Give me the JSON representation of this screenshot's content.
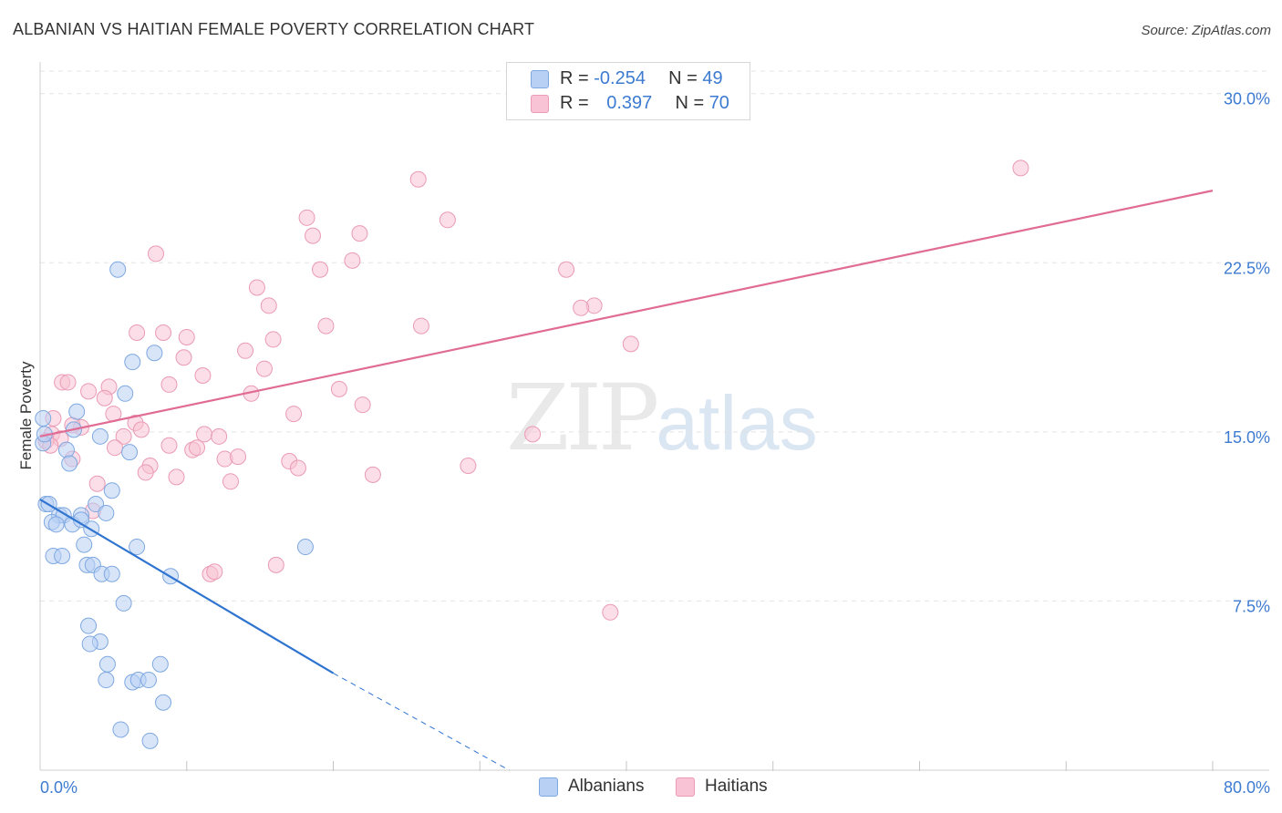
{
  "header": {
    "title": "ALBANIAN VS HAITIAN FEMALE POVERTY CORRELATION CHART",
    "source": "Source: ZipAtlas.com"
  },
  "watermark": {
    "part1": "ZIP",
    "part2": "atlas"
  },
  "legend": {
    "r_label": "R =",
    "n_label": "N =",
    "albanian": {
      "r": "-0.254",
      "n": "49"
    },
    "haitian": {
      "r": "0.397",
      "n": "70"
    }
  },
  "colors": {
    "albanian_fill": "#b8d0f4",
    "albanian_stroke": "#7ea8e0",
    "albanian_line": "#2f74d0",
    "haitian_fill": "#f8c3d4",
    "haitian_stroke": "#ea9ab4",
    "haitian_line": "#e06b94",
    "tick_label": "#3d7bd1",
    "grid": "#e4e4e4"
  },
  "chart_data": {
    "type": "scatter",
    "title": "ALBANIAN VS HAITIAN FEMALE POVERTY CORRELATION CHART",
    "xlabel": "",
    "ylabel": "Female Poverty",
    "xlim": [
      0,
      80
    ],
    "ylim": [
      0,
      31
    ],
    "x_tick_labels": [
      {
        "value": 0,
        "label": "0.0%"
      },
      {
        "value": 80,
        "label": "80.0%"
      }
    ],
    "y_ticks": [
      {
        "value": 7.5,
        "label": "7.5%"
      },
      {
        "value": 15.0,
        "label": "15.0%"
      },
      {
        "value": 22.5,
        "label": "22.5%"
      },
      {
        "value": 30.0,
        "label": "30.0%"
      }
    ],
    "series": [
      {
        "name": "Albanians",
        "r": -0.254,
        "n": 49,
        "trend": {
          "x_start": 0.0,
          "y_start": 12.0,
          "x_end": 20.0,
          "y_end": 4.3,
          "dashed_to_x": 32.0
        },
        "points": [
          [
            5.3,
            22.2
          ],
          [
            7.8,
            18.5
          ],
          [
            6.3,
            18.1
          ],
          [
            5.8,
            16.7
          ],
          [
            2.5,
            15.9
          ],
          [
            0.2,
            15.6
          ],
          [
            2.3,
            15.1
          ],
          [
            4.1,
            14.8
          ],
          [
            0.2,
            14.5
          ],
          [
            1.8,
            14.2
          ],
          [
            6.1,
            14.1
          ],
          [
            2.0,
            13.6
          ],
          [
            4.9,
            12.4
          ],
          [
            0.4,
            11.8
          ],
          [
            0.6,
            11.8
          ],
          [
            3.8,
            11.8
          ],
          [
            1.3,
            11.3
          ],
          [
            1.6,
            11.3
          ],
          [
            2.8,
            11.3
          ],
          [
            4.5,
            11.4
          ],
          [
            0.8,
            11.0
          ],
          [
            1.1,
            10.9
          ],
          [
            2.2,
            10.9
          ],
          [
            2.8,
            11.1
          ],
          [
            3.5,
            10.7
          ],
          [
            3.0,
            10.0
          ],
          [
            6.6,
            9.9
          ],
          [
            18.1,
            9.9
          ],
          [
            0.9,
            9.5
          ],
          [
            1.5,
            9.5
          ],
          [
            3.2,
            9.1
          ],
          [
            3.6,
            9.1
          ],
          [
            4.2,
            8.7
          ],
          [
            4.9,
            8.7
          ],
          [
            8.9,
            8.6
          ],
          [
            5.7,
            7.4
          ],
          [
            3.3,
            6.4
          ],
          [
            4.1,
            5.7
          ],
          [
            3.4,
            5.6
          ],
          [
            4.6,
            4.7
          ],
          [
            8.2,
            4.7
          ],
          [
            4.5,
            4.0
          ],
          [
            6.3,
            3.9
          ],
          [
            6.7,
            4.0
          ],
          [
            7.4,
            4.0
          ],
          [
            8.4,
            3.0
          ],
          [
            5.5,
            1.8
          ],
          [
            7.5,
            1.3
          ],
          [
            0.3,
            14.9
          ]
        ]
      },
      {
        "name": "Haitians",
        "r": 0.397,
        "n": 70,
        "trend": {
          "x_start": 0.0,
          "y_start": 14.8,
          "x_end": 80.0,
          "y_end": 25.7
        },
        "points": [
          [
            66.9,
            26.7
          ],
          [
            25.8,
            26.2
          ],
          [
            27.8,
            24.4
          ],
          [
            18.2,
            24.5
          ],
          [
            18.6,
            23.7
          ],
          [
            21.8,
            23.8
          ],
          [
            7.9,
            22.9
          ],
          [
            21.3,
            22.6
          ],
          [
            19.1,
            22.2
          ],
          [
            35.9,
            22.2
          ],
          [
            14.8,
            21.4
          ],
          [
            15.6,
            20.6
          ],
          [
            37.8,
            20.6
          ],
          [
            36.9,
            20.5
          ],
          [
            19.5,
            19.7
          ],
          [
            26.0,
            19.7
          ],
          [
            6.6,
            19.4
          ],
          [
            8.4,
            19.4
          ],
          [
            10.0,
            19.2
          ],
          [
            15.9,
            19.1
          ],
          [
            40.3,
            18.9
          ],
          [
            14.0,
            18.6
          ],
          [
            9.8,
            18.3
          ],
          [
            15.3,
            17.8
          ],
          [
            11.1,
            17.5
          ],
          [
            1.5,
            17.2
          ],
          [
            1.9,
            17.2
          ],
          [
            8.8,
            17.1
          ],
          [
            20.4,
            16.9
          ],
          [
            4.7,
            17.0
          ],
          [
            3.3,
            16.8
          ],
          [
            14.4,
            16.7
          ],
          [
            4.4,
            16.5
          ],
          [
            22.0,
            16.2
          ],
          [
            5.0,
            15.8
          ],
          [
            17.3,
            15.8
          ],
          [
            0.9,
            15.6
          ],
          [
            6.5,
            15.4
          ],
          [
            2.8,
            15.2
          ],
          [
            6.9,
            15.1
          ],
          [
            0.8,
            14.9
          ],
          [
            11.2,
            14.9
          ],
          [
            12.2,
            14.8
          ],
          [
            5.7,
            14.8
          ],
          [
            33.6,
            14.9
          ],
          [
            1.4,
            14.7
          ],
          [
            0.4,
            14.6
          ],
          [
            8.8,
            14.4
          ],
          [
            5.1,
            14.3
          ],
          [
            10.4,
            14.2
          ],
          [
            10.7,
            14.3
          ],
          [
            0.7,
            14.4
          ],
          [
            2.2,
            13.8
          ],
          [
            12.6,
            13.8
          ],
          [
            13.5,
            13.9
          ],
          [
            17.0,
            13.7
          ],
          [
            17.6,
            13.4
          ],
          [
            29.2,
            13.5
          ],
          [
            7.5,
            13.5
          ],
          [
            7.2,
            13.2
          ],
          [
            9.3,
            13.0
          ],
          [
            22.7,
            13.1
          ],
          [
            13.0,
            12.8
          ],
          [
            3.9,
            12.7
          ],
          [
            3.6,
            11.5
          ],
          [
            16.1,
            9.1
          ],
          [
            11.6,
            8.7
          ],
          [
            11.9,
            8.8
          ],
          [
            38.9,
            7.0
          ],
          [
            2.2,
            15.3
          ]
        ]
      }
    ]
  },
  "bottom_legend": {
    "albanians": "Albanians",
    "haitians": "Haitians"
  },
  "y_axis_label": "Female Poverty"
}
